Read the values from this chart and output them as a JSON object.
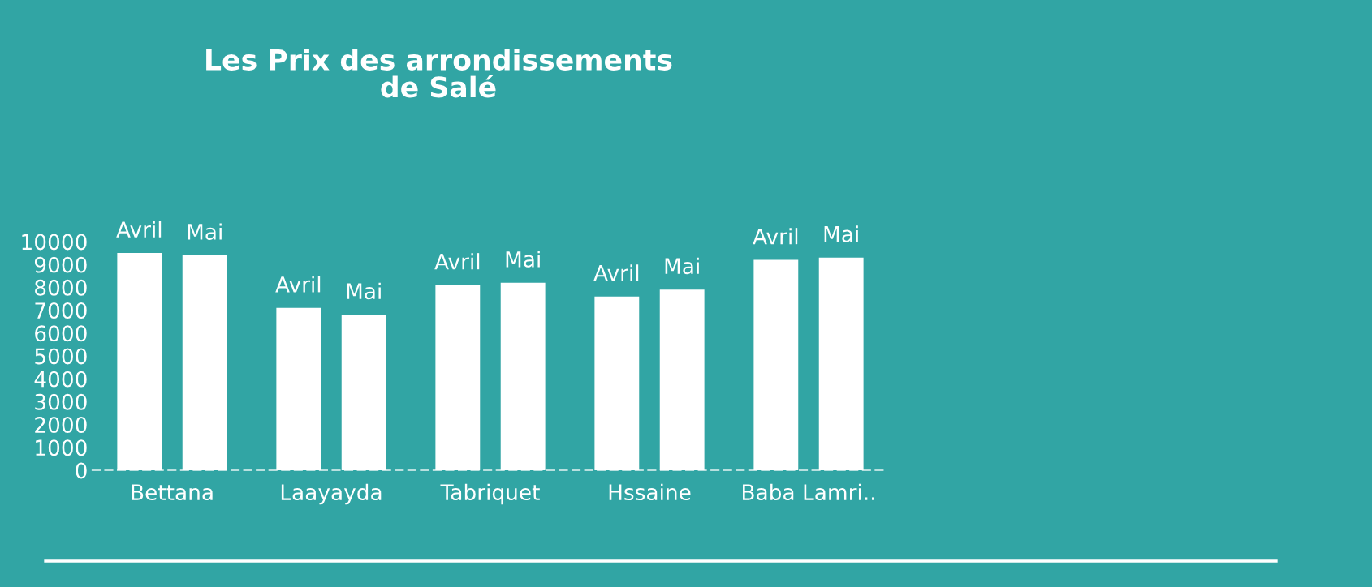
{
  "chart_data": {
    "type": "bar",
    "title": "Les Prix des arrondissements\nde Salé",
    "categories": [
      "Bettana",
      "Laayayda",
      "Tabriquet",
      "Hssaine",
      "Baba Lamri.."
    ],
    "series": [
      {
        "name": "Avril",
        "color": "#ffffff",
        "values": [
          9500,
          7100,
          8100,
          7600,
          9200
        ]
      },
      {
        "name": "Mai",
        "color": "#ffffff",
        "values": [
          9400,
          6800,
          8200,
          7900,
          9300
        ]
      }
    ],
    "ylim": [
      0,
      10000
    ],
    "yticks": [
      0,
      1000,
      2000,
      3000,
      4000,
      5000,
      6000,
      7000,
      8000,
      9000,
      10000
    ],
    "grid": false,
    "legend": false
  }
}
